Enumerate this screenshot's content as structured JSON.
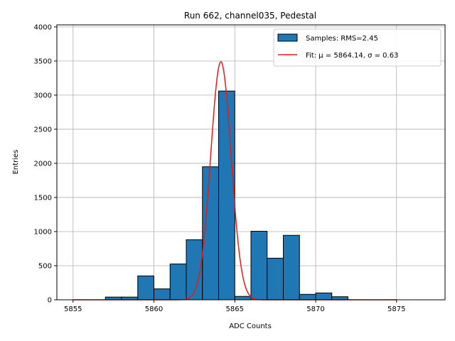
{
  "chart_data": {
    "type": "bar",
    "title": "Run 662, channel035, Pedestal",
    "xlabel": "ADC Counts",
    "ylabel": "Entries",
    "xlim": [
      5854,
      5878
    ],
    "ylim": [
      0,
      4030
    ],
    "xticks": [
      5855,
      5860,
      5865,
      5870,
      5875
    ],
    "yticks": [
      0,
      500,
      1000,
      1500,
      2000,
      2500,
      3000,
      3500,
      4000
    ],
    "grid": true,
    "legend_position": "top-right",
    "histogram": {
      "name": "Samples: RMS=2.45",
      "color": "#1f77b4",
      "edge_color": "#000000",
      "bin_edges": [
        5857,
        5858,
        5859,
        5860,
        5861,
        5862,
        5863,
        5864,
        5865,
        5866,
        5867,
        5868,
        5869,
        5870,
        5871,
        5872
      ],
      "counts": [
        40,
        40,
        350,
        160,
        525,
        880,
        1950,
        3060,
        50,
        1005,
        610,
        945,
        80,
        100,
        45
      ]
    },
    "fit": {
      "name": "Fit: μ = 5864.14, σ = 0.63",
      "color": "#e41a1c",
      "mu": 5864.14,
      "sigma": 0.63,
      "amplitude": 3490,
      "x_range": [
        5855,
        5875
      ]
    }
  }
}
